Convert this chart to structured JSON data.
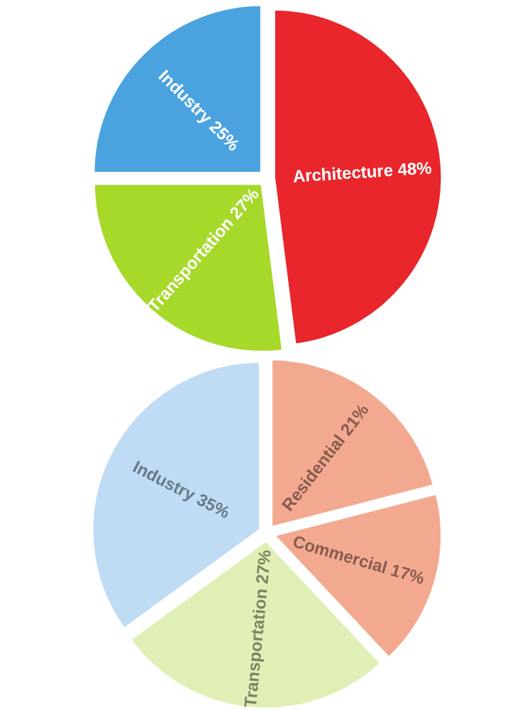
{
  "chart_data": [
    {
      "type": "pie",
      "categories": [
        "Architecture",
        "Transportation",
        "Industry"
      ],
      "values": [
        48,
        27,
        25
      ],
      "value_labels": [
        "48%",
        "27%",
        "25%"
      ],
      "colors": [
        "#e8262b",
        "#a6d92a",
        "#4aa3df"
      ]
    },
    {
      "type": "pie",
      "categories": [
        "Residential",
        "Commercial",
        "Transportation",
        "Industry"
      ],
      "values": [
        21,
        17,
        27,
        35
      ],
      "value_labels": [
        "21%",
        "17%",
        "27%",
        "35%"
      ],
      "colors": [
        "#f3a990",
        "#f3a990",
        "#e0efb5",
        "#bfdcf4"
      ]
    }
  ]
}
